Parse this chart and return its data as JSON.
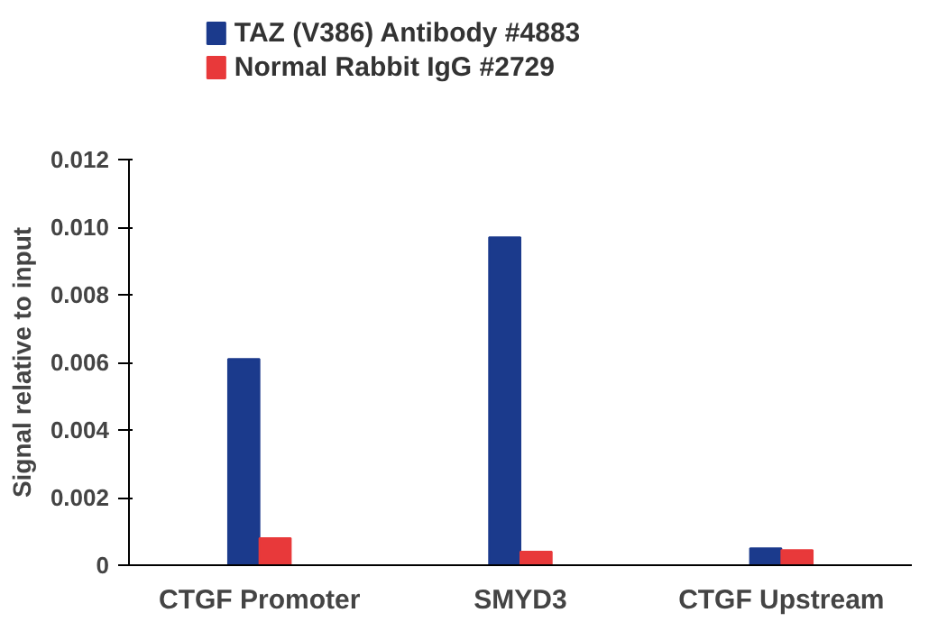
{
  "chart_data": {
    "type": "bar",
    "ylabel": "Signal relative to input",
    "categories": [
      "CTGF Promoter",
      "SMYD3",
      "CTGF Upstream"
    ],
    "series": [
      {
        "name": "TAZ (V386) Antibody #4883",
        "color": "#1b3a8c",
        "values": [
          0.0061,
          0.0097,
          0.0005
        ]
      },
      {
        "name": "Normal Rabbit IgG #2729",
        "color": "#e8393a",
        "values": [
          0.0008,
          0.0004,
          0.00045
        ]
      }
    ],
    "ylim": [
      0,
      0.012
    ],
    "yticks": [
      0,
      0.002,
      0.004,
      0.006,
      0.008,
      {
        "value": 0.01,
        "label": "0.010"
      },
      0.012
    ],
    "grid": false,
    "legend": "top left"
  }
}
